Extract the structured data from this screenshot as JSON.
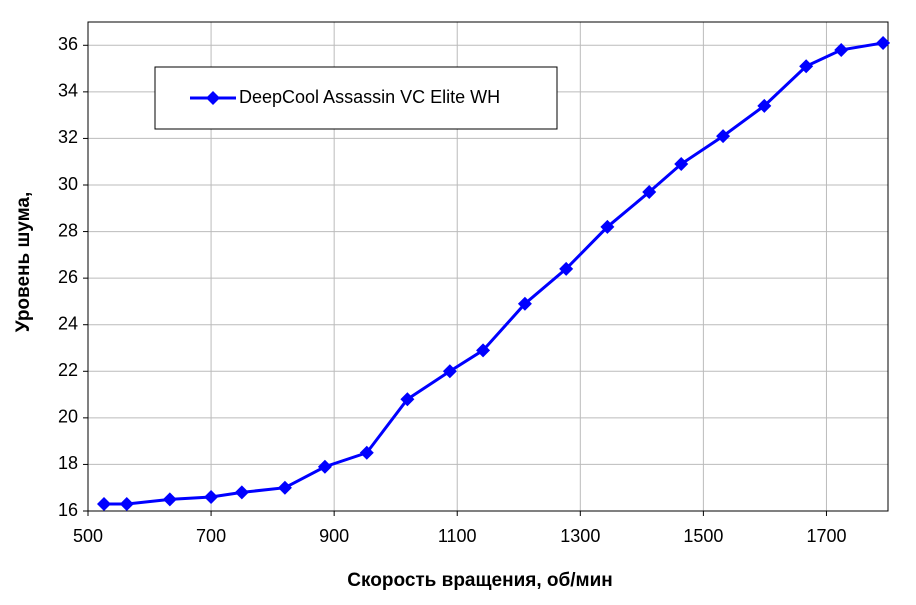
{
  "chart_data": {
    "type": "line",
    "x_label": "Скорость вращения, об/мин",
    "y_label": "Уровень шума,",
    "x": [
      526,
      563,
      633,
      700,
      750,
      820,
      885,
      953,
      1019,
      1088,
      1142,
      1210,
      1277,
      1344,
      1412,
      1464,
      1532,
      1599,
      1667,
      1724,
      1792
    ],
    "series": [
      {
        "name": "DeepCool Assassin VC Elite WH",
        "color": "#0000ff",
        "values": [
          16.3,
          16.3,
          16.5,
          16.6,
          16.8,
          17.0,
          17.9,
          18.5,
          20.8,
          22.0,
          22.9,
          24.9,
          26.4,
          28.2,
          29.7,
          30.9,
          32.1,
          33.4,
          35.1,
          35.8,
          36.1
        ]
      }
    ],
    "xlim": [
      500,
      1800
    ],
    "xticks": [
      500,
      700,
      900,
      1100,
      1300,
      1500,
      1700
    ],
    "ylim": [
      16,
      37
    ],
    "yticks": [
      16,
      18,
      20,
      22,
      24,
      26,
      28,
      30,
      32,
      34,
      36
    ],
    "grid": true
  }
}
